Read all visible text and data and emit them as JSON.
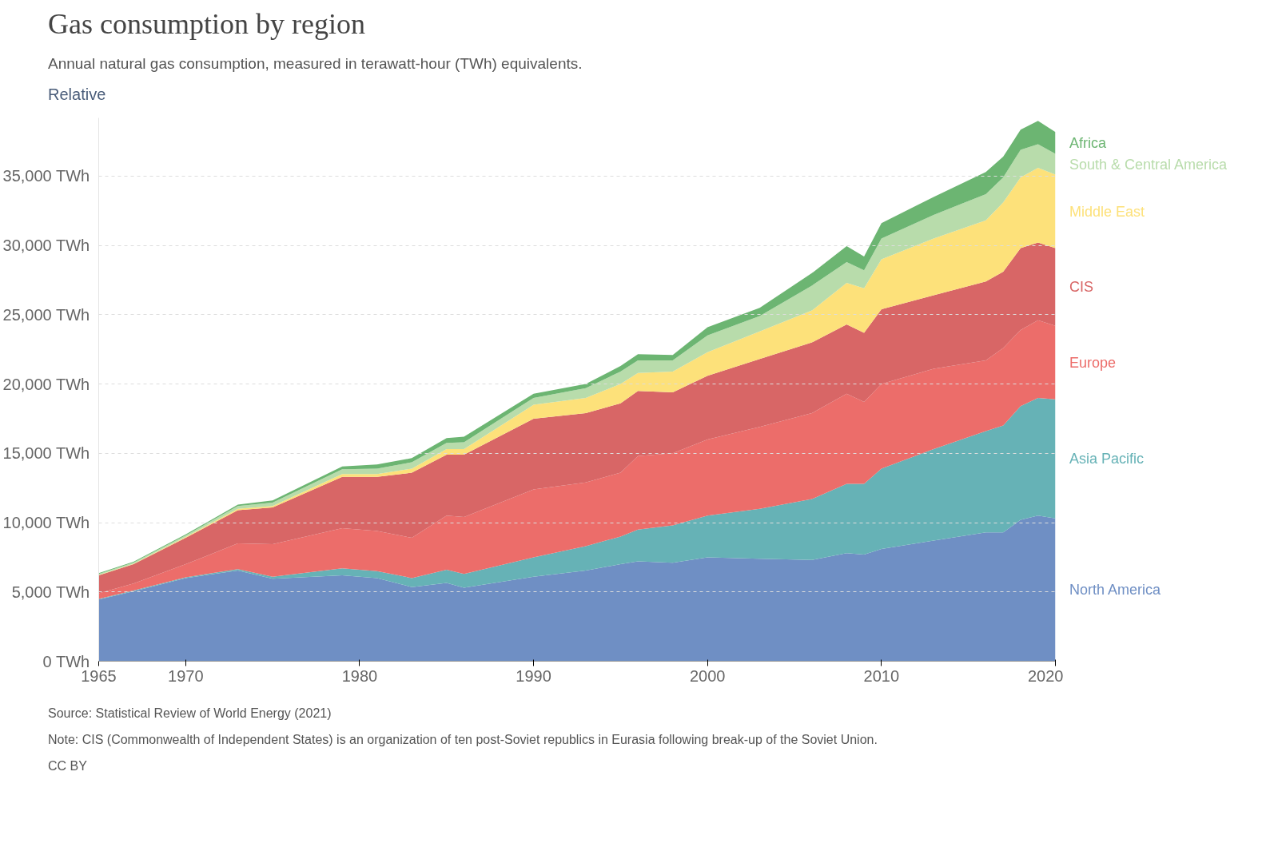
{
  "chart_data": {
    "type": "area",
    "stacked": true,
    "title": "Gas consumption by region",
    "subtitle": "Annual natural gas consumption, measured in terawatt-hour (TWh) equivalents.",
    "x": [
      1965,
      1967,
      1970,
      1973,
      1975,
      1979,
      1981,
      1983,
      1985,
      1986,
      1990,
      1993,
      1995,
      1996,
      1998,
      2000,
      2003,
      2006,
      2008,
      2009,
      2010,
      2013,
      2016,
      2017,
      2018,
      2019,
      2020
    ],
    "series": [
      {
        "name": "North America",
        "color": "#6f8fc4",
        "values": [
          4450,
          5050,
          6000,
          6550,
          5950,
          6200,
          6000,
          5350,
          5650,
          5300,
          6100,
          6550,
          7000,
          7200,
          7100,
          7500,
          7400,
          7300,
          7800,
          7700,
          8100,
          8700,
          9300,
          9300,
          10200,
          10500,
          10300
        ]
      },
      {
        "name": "Asia Pacific",
        "color": "#66b2b6",
        "values": [
          50,
          50,
          60,
          100,
          150,
          500,
          500,
          650,
          950,
          1000,
          1400,
          1750,
          2000,
          2300,
          2700,
          3000,
          3600,
          4400,
          5000,
          5100,
          5800,
          6600,
          7300,
          7700,
          8200,
          8500,
          8600
        ]
      },
      {
        "name": "Europe",
        "color": "#ec6d6a",
        "values": [
          400,
          500,
          940,
          1850,
          2350,
          2900,
          2900,
          2900,
          3900,
          4100,
          4900,
          4600,
          4600,
          5300,
          5200,
          5500,
          5900,
          6200,
          6500,
          5900,
          6100,
          5800,
          5100,
          5600,
          5500,
          5600,
          5300
        ]
      },
      {
        "name": "CIS",
        "color": "#d86666",
        "values": [
          1300,
          1400,
          1900,
          2400,
          2650,
          3700,
          3900,
          4700,
          4400,
          4500,
          5100,
          5000,
          5000,
          4700,
          4400,
          4600,
          4900,
          5100,
          5000,
          5000,
          5400,
          5300,
          5700,
          5500,
          5900,
          5600,
          5600
        ]
      },
      {
        "name": "Middle East",
        "color": "#fde17a",
        "values": [
          30,
          30,
          60,
          100,
          100,
          200,
          200,
          300,
          400,
          400,
          1000,
          1100,
          1400,
          1300,
          1500,
          1700,
          2000,
          2300,
          3000,
          3200,
          3600,
          4100,
          4400,
          5000,
          5100,
          5400,
          5300
        ]
      },
      {
        "name": "South & Central America",
        "color": "#b8dcab",
        "values": [
          70,
          90,
          120,
          200,
          250,
          350,
          400,
          450,
          450,
          500,
          500,
          700,
          900,
          900,
          800,
          1200,
          1100,
          1800,
          1500,
          1300,
          1500,
          1700,
          1900,
          1800,
          2000,
          1700,
          1500
        ]
      },
      {
        "name": "Africa",
        "color": "#6cb572",
        "values": [
          50,
          60,
          70,
          100,
          150,
          200,
          300,
          300,
          350,
          400,
          300,
          300,
          400,
          450,
          400,
          600,
          600,
          900,
          1150,
          1000,
          1100,
          1300,
          1600,
          1500,
          1450,
          1680,
          1580
        ]
      }
    ],
    "xlim": [
      1965,
      2020
    ],
    "xticks": [
      1965,
      1970,
      1980,
      1990,
      2000,
      2010,
      2020
    ],
    "ylim": [
      0,
      39200
    ],
    "yticks": [
      {
        "value": 0,
        "label": "0 TWh"
      },
      {
        "value": 5000,
        "label": "5,000 TWh"
      },
      {
        "value": 10000,
        "label": "10,000 TWh"
      },
      {
        "value": 15000,
        "label": "15,000 TWh"
      },
      {
        "value": 20000,
        "label": "20,000 TWh"
      },
      {
        "value": 25000,
        "label": "25,000 TWh"
      },
      {
        "value": 30000,
        "label": "30,000 TWh"
      },
      {
        "value": 35000,
        "label": "35,000 TWh"
      }
    ],
    "grid": "y",
    "annotations": [
      "Relative",
      "Source: Statistical Review of World Energy (2021)",
      "Note: CIS (Commonwealth of Independent States) is an organization of ten post-Soviet republics in Eurasia following break-up of the Soviet Union.",
      "CC BY"
    ]
  }
}
